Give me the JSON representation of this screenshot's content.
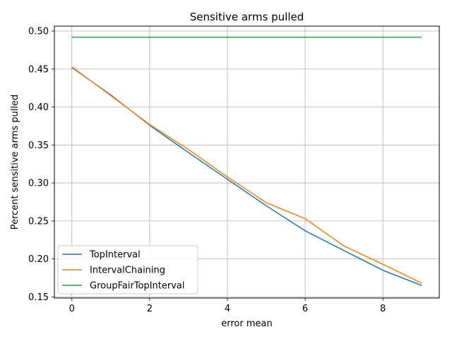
{
  "chart_data": {
    "type": "line",
    "title": "Sensitive arms pulled",
    "xlabel": "error mean",
    "ylabel": "Percent sensitive arms pulled",
    "xlim": [
      -0.45,
      9.45
    ],
    "ylim": [
      0.1485,
      0.5065
    ],
    "xticks": [
      0,
      2,
      4,
      6,
      8
    ],
    "xtick_labels": [
      "0",
      "2",
      "4",
      "6",
      "8"
    ],
    "yticks": [
      0.15,
      0.2,
      0.25,
      0.3,
      0.35,
      0.4,
      0.45,
      0.5
    ],
    "ytick_labels": [
      "0.15",
      "0.20",
      "0.25",
      "0.30",
      "0.35",
      "0.40",
      "0.45",
      "0.50"
    ],
    "grid": true,
    "legend_position": "lower-left",
    "x": [
      0,
      1,
      2,
      3,
      4,
      5,
      6,
      7,
      8,
      9
    ],
    "series": [
      {
        "name": "TopInterval",
        "color": "#1f77b4",
        "values": [
          0.452,
          0.416,
          0.376,
          0.34,
          0.305,
          0.27,
          0.237,
          0.211,
          0.185,
          0.165
        ]
      },
      {
        "name": "IntervalChaining",
        "color": "#ff7f0e",
        "values": [
          0.453,
          0.415,
          0.377,
          0.344,
          0.308,
          0.274,
          0.253,
          0.217,
          0.193,
          0.168
        ]
      },
      {
        "name": "GroupFairTopInterval",
        "color": "#2ca02c",
        "values": [
          0.492,
          0.492,
          0.492,
          0.492,
          0.492,
          0.492,
          0.492,
          0.492,
          0.492,
          0.492
        ]
      }
    ]
  }
}
